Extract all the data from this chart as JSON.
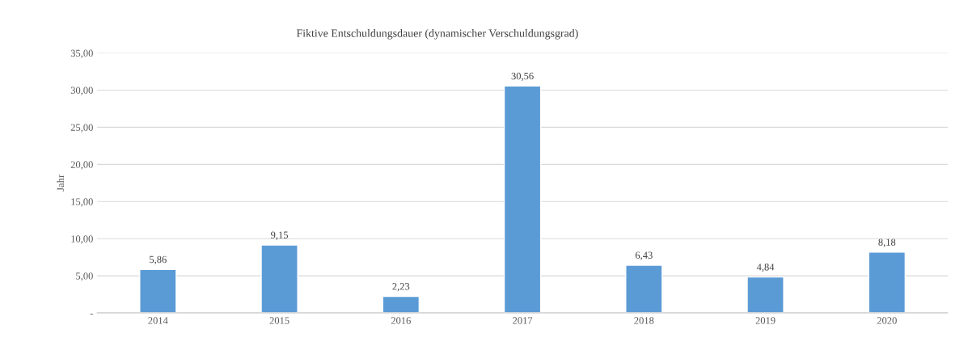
{
  "chart_data": {
    "type": "bar",
    "title": "Fiktive Entschuldungsdauer (dynamischer Verschuldungsgrad)",
    "ylabel": "Jahr",
    "categories": [
      "2014",
      "2015",
      "2016",
      "2017",
      "2018",
      "2019",
      "2020"
    ],
    "values": [
      5.86,
      9.15,
      2.23,
      30.56,
      6.43,
      4.84,
      8.18
    ],
    "value_labels": [
      "5,86",
      "9,15",
      "2,23",
      "30,56",
      "6,43",
      "4,84",
      "8,18"
    ],
    "color": "#5b9bd5",
    "ylim": [
      0,
      35
    ],
    "yticks": [
      {
        "value": 0,
        "label": "-"
      },
      {
        "value": 5,
        "label": "5,00"
      },
      {
        "value": 10,
        "label": "10,00"
      },
      {
        "value": 15,
        "label": "15,00"
      },
      {
        "value": 20,
        "label": "20,00"
      },
      {
        "value": 25,
        "label": "25,00"
      },
      {
        "value": 30,
        "label": "30,00"
      },
      {
        "value": 35,
        "label": "35,00"
      }
    ],
    "grid": "y"
  }
}
